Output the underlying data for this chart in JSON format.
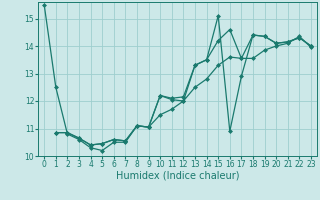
{
  "xlabel": "Humidex (Indice chaleur)",
  "xlim": [
    -0.5,
    23.5
  ],
  "ylim": [
    10,
    15.6
  ],
  "yticks": [
    10,
    11,
    12,
    13,
    14,
    15
  ],
  "xticks": [
    0,
    1,
    2,
    3,
    4,
    5,
    6,
    7,
    8,
    9,
    10,
    11,
    12,
    13,
    14,
    15,
    16,
    17,
    18,
    19,
    20,
    21,
    22,
    23
  ],
  "bg_color": "#cce8e8",
  "line_color": "#1a7a6e",
  "lines": [
    {
      "x": [
        0,
        1,
        2,
        3,
        4,
        5,
        6,
        7,
        8,
        9,
        10,
        11,
        12,
        13,
        14,
        15,
        16,
        17,
        18,
        19,
        20,
        21,
        22,
        23
      ],
      "y": [
        15.5,
        12.5,
        10.8,
        10.6,
        10.3,
        10.2,
        10.5,
        10.5,
        11.1,
        11.05,
        12.2,
        12.05,
        12.0,
        13.3,
        13.5,
        15.1,
        10.9,
        12.9,
        14.4,
        14.35,
        14.1,
        14.15,
        14.3,
        14.0
      ]
    },
    {
      "x": [
        1,
        2,
        3,
        4,
        5,
        6,
        7,
        8,
        9,
        10,
        11,
        12,
        13,
        14,
        15,
        16,
        17,
        18,
        19,
        20,
        21,
        22,
        23
      ],
      "y": [
        10.85,
        10.85,
        10.65,
        10.4,
        10.45,
        10.6,
        10.55,
        11.1,
        11.05,
        12.2,
        12.1,
        12.15,
        13.3,
        13.5,
        14.2,
        14.6,
        13.55,
        14.4,
        14.35,
        14.1,
        14.15,
        14.3,
        14.0
      ]
    },
    {
      "x": [
        1,
        2,
        3,
        4,
        5,
        6,
        7,
        8,
        9,
        10,
        11,
        12,
        13,
        14,
        15,
        16,
        17,
        18,
        19,
        20,
        21,
        22,
        23
      ],
      "y": [
        10.85,
        10.85,
        10.65,
        10.4,
        10.45,
        10.6,
        10.55,
        11.1,
        11.05,
        11.5,
        11.7,
        12.0,
        12.5,
        12.8,
        13.3,
        13.6,
        13.55,
        13.55,
        13.85,
        14.0,
        14.1,
        14.35,
        13.95
      ]
    }
  ],
  "marker": "D",
  "markersize": 2.0,
  "linewidth": 0.9,
  "grid_color": "#9ecece",
  "tick_fontsize": 5.5,
  "xlabel_fontsize": 7.0
}
